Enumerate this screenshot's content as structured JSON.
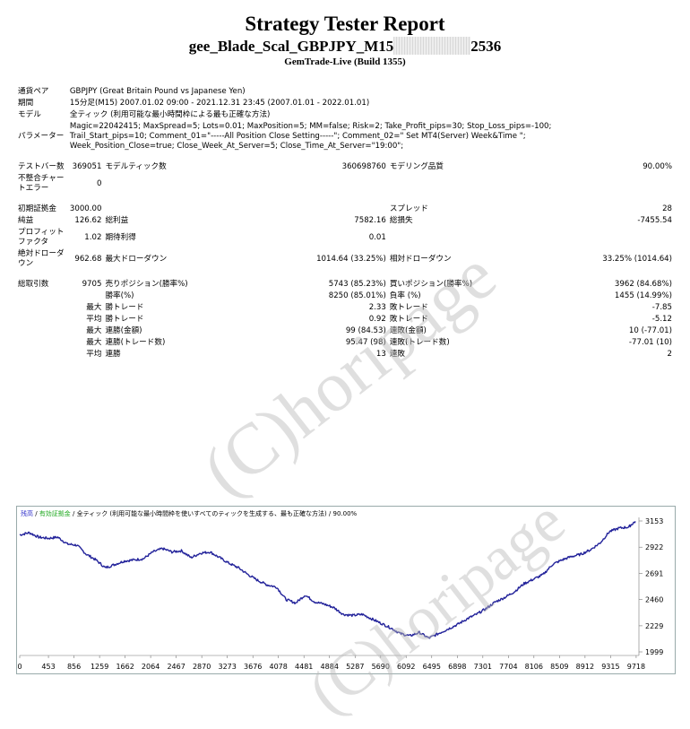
{
  "header": {
    "title": "Strategy Tester Report",
    "subtitle_prefix": "gee_Blade_Scal_GBPJPY_M15",
    "subtitle_suffix": "2536",
    "build": "GemTrade-Live (Build 1355)"
  },
  "info": {
    "symbol_label": "通貨ペア",
    "symbol_value": "GBPJPY (Great Britain Pound vs Japanese Yen)",
    "period_label": "期間",
    "period_value": "15分足(M15) 2007.01.02 09:00 - 2021.12.31 23:45 (2007.01.01 - 2022.01.01)",
    "model_label": "モデル",
    "model_value": "全ティック (利用可能な最小時間枠による最も正確な方法)",
    "params_label": "パラメーター",
    "params_line1": "Magic=22042415; MaxSpread=5; Lots=0.01; MaxPosition=5; MM=false; Risk=2; Take_Profit_pips=30; Stop_Loss_pips=-100;",
    "params_line2": "Trail_Start_pips=10; Comment_01=\"-----All Position Close Setting-----\"; Comment_02=\" Set MT4(Server) Week&Time \";",
    "params_line3": "Week_Position_Close=true; Close_Week_At_Server=5; Close_Time_At_Server=\"19:00\";"
  },
  "stats": {
    "bars_label": "テストバー数",
    "bars_value": "369051",
    "ticks_label": "モデルティック数",
    "ticks_value": "360698760",
    "quality_label": "モデリング品質",
    "quality_value": "90.00%",
    "mismatch_label": "不整合チャートエラー",
    "mismatch_value": "0",
    "deposit_label": "初期証拠金",
    "deposit_value": "3000.00",
    "spread_label": "スプレッド",
    "spread_value": "28",
    "net_label": "純益",
    "net_value": "126.62",
    "gross_profit_label": "総利益",
    "gross_profit_value": "7582.16",
    "gross_loss_label": "総損失",
    "gross_loss_value": "-7455.54",
    "pf_label": "プロフィットファクタ",
    "pf_value": "1.02",
    "expected_label": "期待利得",
    "expected_value": "0.01",
    "abs_dd_label": "絶対ドローダウン",
    "abs_dd_value": "962.68",
    "max_dd_label": "最大ドローダウン",
    "max_dd_value": "1014.64 (33.25%)",
    "rel_dd_label": "相対ドローダウン",
    "rel_dd_value": "33.25% (1014.64)",
    "total_label": "総取引数",
    "total_value": "9705",
    "short_label": "売りポジション(勝率%)",
    "short_value": "5743 (85.23%)",
    "long_label": "買いポジション(勝率%)",
    "long_value": "3962 (84.68%)",
    "win_label": "勝率(%)",
    "win_value": "8250 (85.01%)",
    "loss_label": "負率 (%)",
    "loss_value": "1455 (14.99%)",
    "max_word": "最大",
    "avg_word": "平均",
    "win_trade_label": "勝トレード",
    "max_win_value": "2.33",
    "avg_win_value": "0.92",
    "loss_trade_label": "敗トレード",
    "max_loss_value": "-7.85",
    "avg_loss_value": "-5.12",
    "cons_win_amt_label": "連勝(金額)",
    "cons_win_amt_value": "99 (84.53)",
    "cons_loss_amt_label": "連敗(金額)",
    "cons_loss_amt_value": "10 (-77.01)",
    "cons_win_cnt_label": "連勝(トレード数)",
    "cons_win_cnt_value": "95.47 (98)",
    "cons_loss_cnt_label": "連敗(トレード数)",
    "cons_loss_cnt_value": "-77.01 (10)",
    "avg_cons_win_label": "連勝",
    "avg_cons_win_value": "13",
    "avg_cons_loss_label": "連敗",
    "avg_cons_loss_value": "2"
  },
  "chart_legend": {
    "balance": "残高",
    "sep1": " / ",
    "equity": "有効証拠金",
    "rest": " / 全ティック (利用可能な最小時間枠を使いすべてのティックを生成する、最も正確な方法) / 90.00%"
  },
  "watermark": "(C)horipage",
  "colors": {
    "balance_line": "#22229a",
    "axis_text": "#000000"
  },
  "chart_data": {
    "type": "line",
    "title": "",
    "xlabel": "",
    "ylabel": "",
    "x_ticks": [
      "0",
      "453",
      "856",
      "1259",
      "1662",
      "2064",
      "2467",
      "2870",
      "3273",
      "3676",
      "4078",
      "4481",
      "4884",
      "5287",
      "5690",
      "6092",
      "6495",
      "6898",
      "7301",
      "7704",
      "8106",
      "8509",
      "8912",
      "9315",
      "9718"
    ],
    "y_ticks": [
      "3153",
      "2922",
      "2691",
      "2460",
      "2229",
      "1999"
    ],
    "xlim": [
      0,
      9705
    ],
    "ylim": [
      1999,
      3153
    ],
    "series": [
      {
        "x": [
          0,
          150,
          300,
          450,
          600,
          750,
          900,
          1050,
          1200,
          1350,
          1500,
          1650,
          1800,
          1950,
          2100,
          2250,
          2400,
          2550,
          2700,
          2850,
          3000,
          3150,
          3300,
          3450,
          3600,
          3750,
          3900,
          4050,
          4200,
          4350,
          4500,
          4650,
          4800,
          4950,
          5100,
          5250,
          5400,
          5550,
          5700,
          5850,
          6000,
          6150,
          6300,
          6450,
          6600,
          6750,
          6900,
          7050,
          7200,
          7350,
          7500,
          7650,
          7800,
          7950,
          8100,
          8250,
          8400,
          8550,
          8700,
          8850,
          9000,
          9150,
          9300,
          9450,
          9600,
          9705
        ],
        "y": [
          3030,
          3050,
          3010,
          3000,
          3010,
          2950,
          2940,
          2860,
          2810,
          2740,
          2770,
          2800,
          2810,
          2820,
          2880,
          2910,
          2880,
          2890,
          2830,
          2870,
          2880,
          2830,
          2780,
          2740,
          2680,
          2630,
          2590,
          2570,
          2460,
          2430,
          2500,
          2440,
          2420,
          2390,
          2330,
          2320,
          2330,
          2290,
          2250,
          2210,
          2160,
          2140,
          2170,
          2120,
          2160,
          2200,
          2240,
          2290,
          2330,
          2380,
          2440,
          2480,
          2530,
          2600,
          2640,
          2680,
          2770,
          2810,
          2840,
          2860,
          2900,
          2960,
          3060,
          3090,
          3100,
          3150
        ]
      }
    ]
  }
}
